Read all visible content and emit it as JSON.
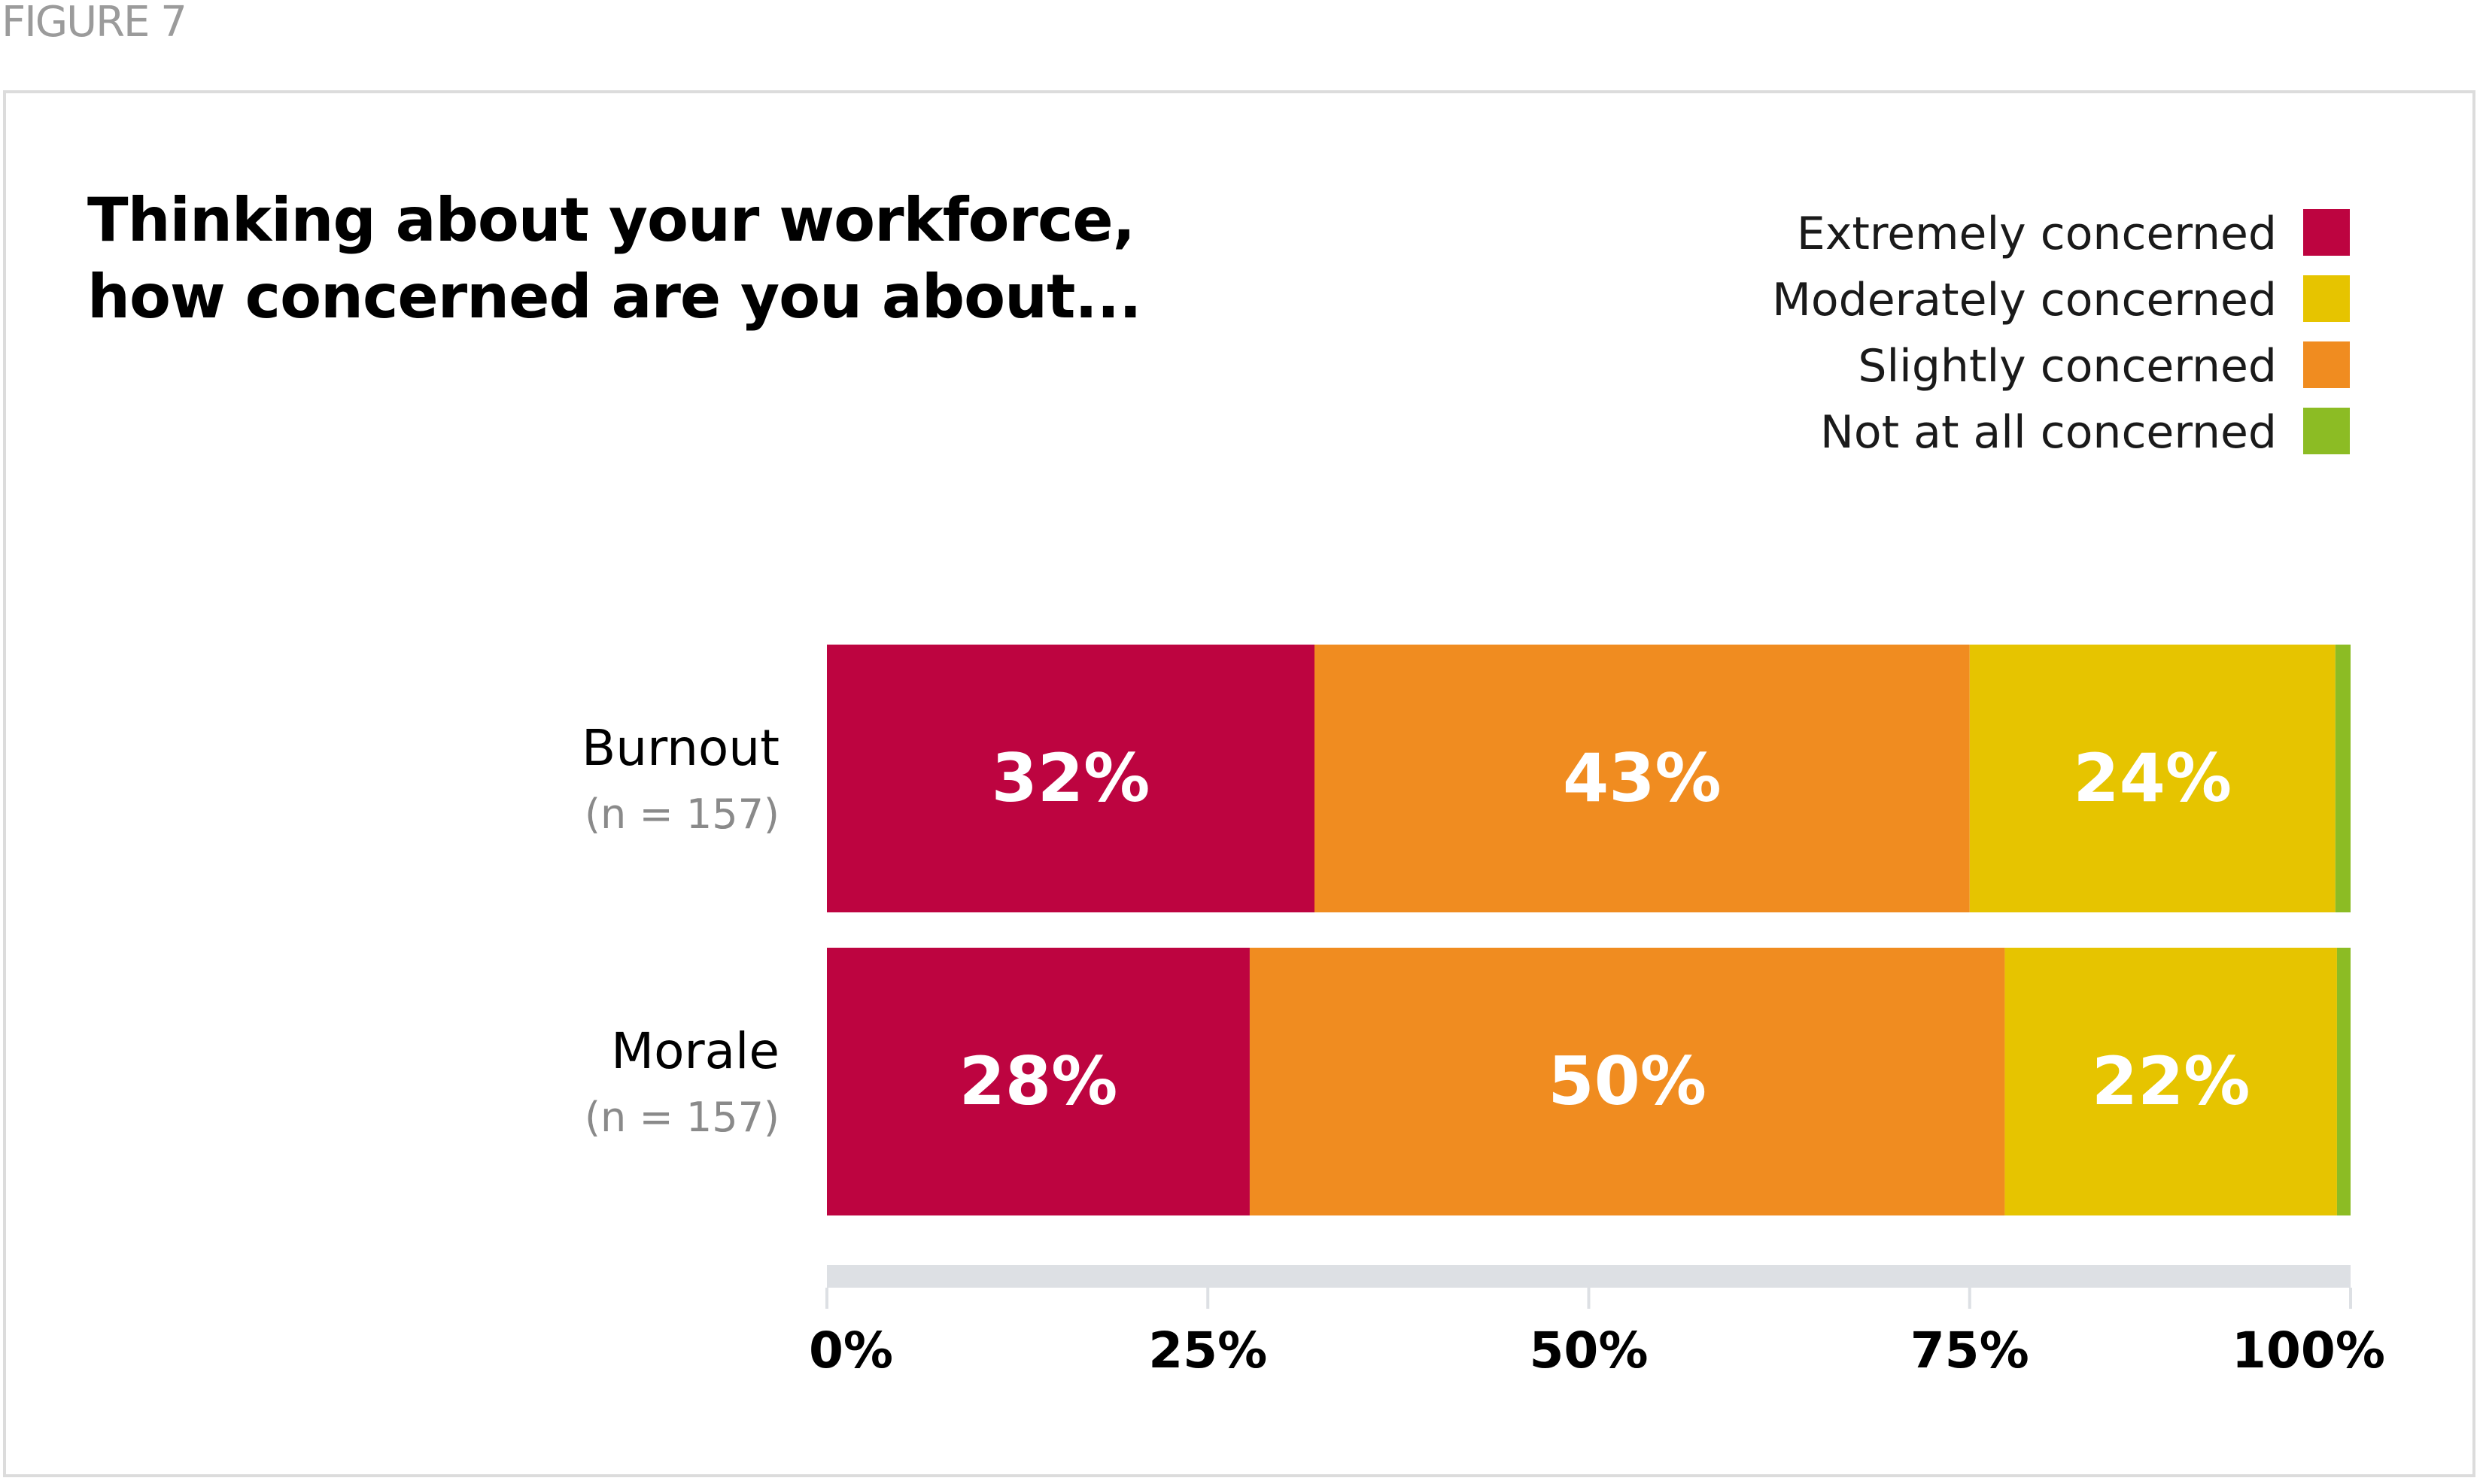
{
  "figure_label": "FIGURE 7",
  "chart_data": {
    "type": "bar",
    "orientation": "horizontal",
    "stacked": true,
    "title_lines": [
      "Thinking about your workforce,",
      "how concerned are you about..."
    ],
    "categories": [
      "Burnout",
      "Morale"
    ],
    "category_sublabels": [
      "(n = 157)",
      "(n = 157)"
    ],
    "series": [
      {
        "name": "Extremely concerned",
        "values": [
          32,
          28
        ],
        "labels": [
          "32%",
          "28%"
        ],
        "color": "#bd0440"
      },
      {
        "name": "Slightly concerned",
        "values": [
          43,
          50
        ],
        "labels": [
          "43%",
          "50%"
        ],
        "color": "#f08c20"
      },
      {
        "name": "Moderately concerned",
        "values": [
          24,
          22
        ],
        "labels": [
          "24%",
          "22%"
        ],
        "color": "#e6c400"
      },
      {
        "name": "Not at all concerned",
        "values": [
          1,
          0.9
        ],
        "labels": [
          "",
          ""
        ],
        "color": "#8cbc24"
      }
    ],
    "legend": {
      "placement": "top-right",
      "entries": [
        {
          "label": "Extremely concerned",
          "color": "#bd0440"
        },
        {
          "label": "Moderately concerned",
          "color": "#e6c400"
        },
        {
          "label": "Slightly concerned",
          "color": "#f08c20"
        },
        {
          "label": "Not at all concerned",
          "color": "#8cbc24"
        }
      ]
    },
    "x_ticks": [
      0,
      25,
      50,
      75,
      100
    ],
    "x_tick_labels": [
      "0%",
      "25%",
      "50%",
      "75%",
      "100%"
    ],
    "xlim": [
      0,
      100
    ],
    "axis_color": "#dde0e4",
    "grid": false
  }
}
